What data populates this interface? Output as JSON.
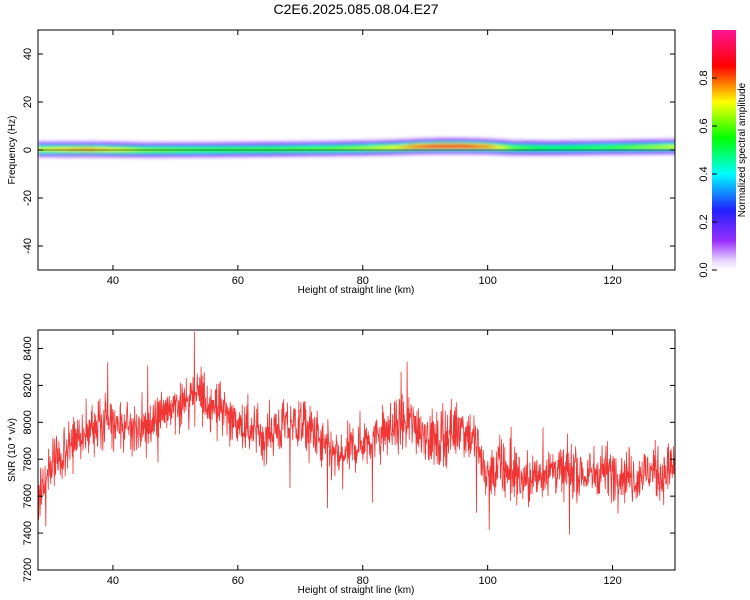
{
  "figure": {
    "title": "C2E6.2025.085.08.04.E27"
  },
  "chart_data": [
    {
      "type": "heatmap",
      "xlabel": "Height of straight line (km)",
      "ylabel": "Frequency (Hz)",
      "xlim": [
        28,
        130
      ],
      "ylim": [
        -50,
        50
      ],
      "xticks": [
        40,
        60,
        80,
        100,
        120
      ],
      "yticks": [
        -40,
        -20,
        0,
        20,
        40
      ],
      "colorbar": {
        "label": "Normalized spectral amplitude",
        "range": [
          0,
          1
        ],
        "ticks": [
          0.0,
          0.2,
          0.4,
          0.6,
          0.8
        ],
        "colormap": "rainbow (violet to magenta)"
      },
      "band": {
        "x": [
          28,
          32,
          36,
          45,
          55,
          65,
          75,
          80,
          85,
          88,
          92,
          96,
          100,
          104,
          110,
          120,
          130
        ],
        "center_hz": [
          0.5,
          0.5,
          0.5,
          0.2,
          0.3,
          0.5,
          0.8,
          1.0,
          1.3,
          1.6,
          1.8,
          1.8,
          1.6,
          1.1,
          1.0,
          1.3,
          1.6
        ],
        "peak_amplitude": [
          0.7,
          0.75,
          0.78,
          0.65,
          0.6,
          0.6,
          0.62,
          0.66,
          0.72,
          0.82,
          0.92,
          0.9,
          0.8,
          0.62,
          0.55,
          0.6,
          0.7
        ]
      }
    },
    {
      "type": "line",
      "xlabel": "Height of straight line (km)",
      "ylabel": "SNR (10 * v/v)",
      "xlim": [
        28,
        130
      ],
      "ylim": [
        7200,
        8500
      ],
      "xticks": [
        40,
        60,
        80,
        100,
        120
      ],
      "yticks": [
        7200,
        7400,
        7600,
        7800,
        8000,
        8200,
        8400
      ],
      "color": "#f03535",
      "series": [
        {
          "x": [
            28,
            30,
            32,
            34,
            36,
            38,
            40,
            42,
            44,
            46,
            48,
            50,
            52,
            54,
            56,
            58,
            60,
            62,
            64,
            66,
            68,
            70,
            72,
            74,
            76,
            78,
            80,
            82,
            84,
            86,
            88,
            90,
            92,
            94,
            96,
            98,
            100,
            102,
            104,
            106,
            108,
            110,
            112,
            114,
            116,
            118,
            120,
            122,
            124,
            126,
            128,
            130
          ],
          "mean": [
            7600,
            7750,
            7850,
            7900,
            7950,
            7980,
            7990,
            7960,
            7950,
            7980,
            8050,
            8100,
            8120,
            8150,
            8100,
            8060,
            7980,
            7950,
            7930,
            7960,
            7980,
            8000,
            7950,
            7850,
            7800,
            7850,
            7900,
            7920,
            7950,
            7980,
            8000,
            7950,
            7880,
            7950,
            7980,
            7900,
            7700,
            7750,
            7720,
            7680,
            7700,
            7760,
            7720,
            7740,
            7700,
            7750,
            7730,
            7720,
            7700,
            7740,
            7720,
            7760
          ],
          "spread": [
            250,
            220,
            200,
            190,
            180,
            180,
            170,
            170,
            170,
            180,
            190,
            200,
            200,
            210,
            190,
            190,
            180,
            180,
            180,
            180,
            190,
            190,
            190,
            190,
            180,
            180,
            180,
            190,
            190,
            200,
            210,
            200,
            200,
            200,
            210,
            200,
            220,
            200,
            200,
            190,
            190,
            190,
            190,
            190,
            190,
            190,
            190,
            190,
            190,
            190,
            190,
            190
          ]
        }
      ]
    }
  ]
}
